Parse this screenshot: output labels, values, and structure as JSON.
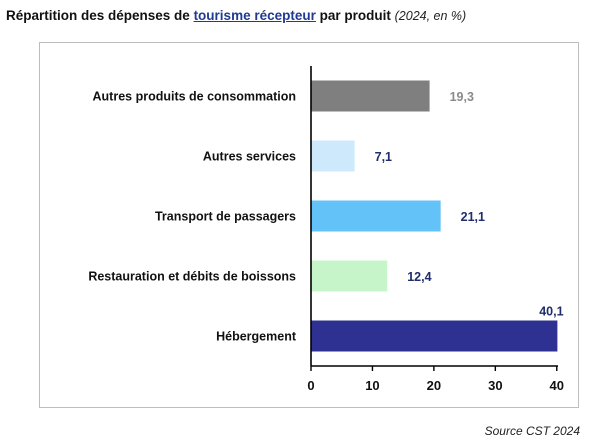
{
  "header": {
    "title_prefix": "Répartition des dépenses de ",
    "title_link": "tourisme récepteur",
    "title_suffix": " par produit",
    "title_note": "(2024, en %)"
  },
  "source": "Source CST 2024",
  "chart_data": {
    "type": "bar",
    "orientation": "horizontal",
    "categories": [
      "Autres produits de consommation",
      "Autres services",
      "Transport de passagers",
      "Restauration et débits de boissons",
      "Hébergement"
    ],
    "values": [
      19.3,
      7.1,
      21.1,
      12.4,
      40.1
    ],
    "value_labels": [
      "19,3",
      "7,1",
      "21,1",
      "12,4",
      "40,1"
    ],
    "bar_colors": [
      "#7f7f7f",
      "#cde9fb",
      "#63c3f8",
      "#c5f5c8",
      "#2e3192"
    ],
    "label_colors": [
      "#8a8a8a",
      "#1f2d6b",
      "#1f2d6b",
      "#1f2d6b",
      "#1f2d6b"
    ],
    "xlim": [
      0,
      45
    ],
    "xticks": [
      "0",
      "10",
      "20",
      "30",
      "40"
    ],
    "xtick_values": [
      0,
      10,
      20,
      30,
      40
    ],
    "grid": false,
    "legend": "none"
  }
}
